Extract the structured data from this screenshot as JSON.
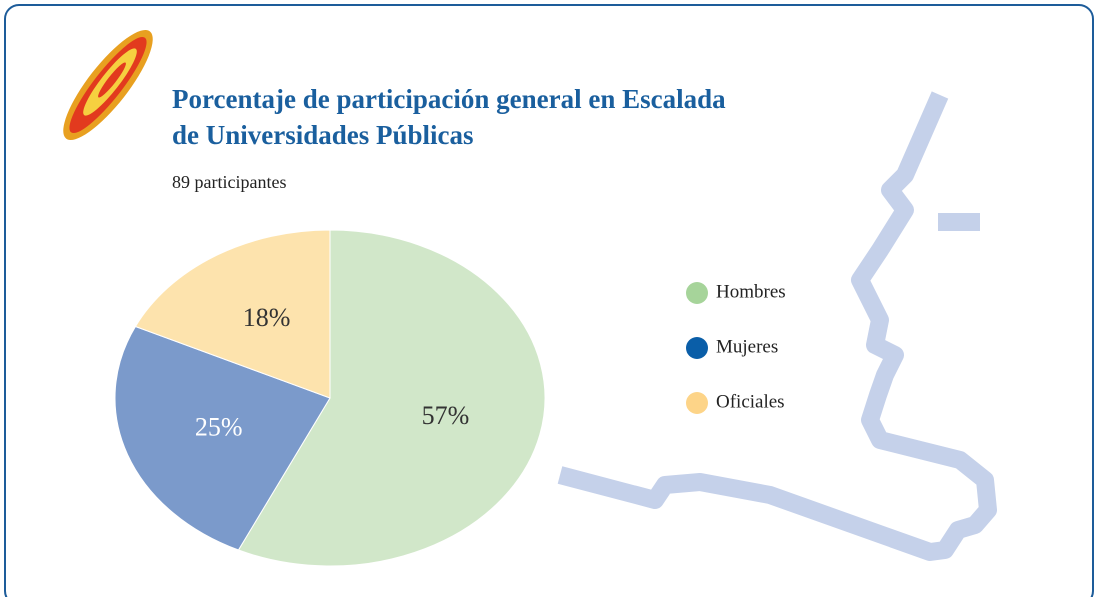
{
  "chart_data": {
    "type": "pie",
    "title": [
      "Porcentaje de participación general en Escalada",
      "de Universidades Públicas"
    ],
    "subtitle": "89 participantes",
    "categories": [
      "Hombres",
      "Mujeres",
      "Oficiales"
    ],
    "values": [
      57,
      25,
      18
    ],
    "value_labels": [
      "57%",
      "25%",
      "18%"
    ],
    "colors": [
      "#d1e7c9",
      "#7b9acb",
      "#fde3ad"
    ],
    "legend_colors": [
      "#a6d49a",
      "#0a5ea8",
      "#fdd488"
    ]
  }
}
